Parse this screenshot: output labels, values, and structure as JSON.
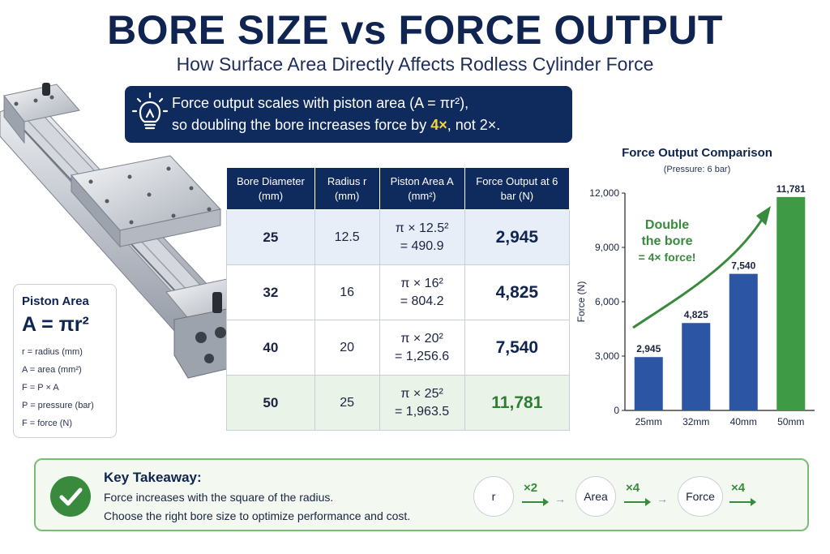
{
  "header": {
    "title": "BORE SIZE vs FORCE OUTPUT",
    "subtitle": "How Surface Area Directly Affects Rodless Cylinder Force"
  },
  "banner": {
    "line1": "Force output scales with piston area (A = πr²),",
    "line2_pre": "so doubling the bore increases force by ",
    "line2_hl": "4×",
    "line2_post": ", not 2×.",
    "icon": "lightbulb-icon"
  },
  "area_card": {
    "heading": "Piston Area",
    "formula": "A = πr²",
    "lines": [
      "r = radius (mm)",
      "A = area (mm²)",
      "F = P × A",
      "P = pressure (bar)",
      "F = force (N)"
    ]
  },
  "table": {
    "headers": [
      "Bore Diameter (mm)",
      "Radius r (mm)",
      "Piston Area A (mm²)",
      "Force Output at 6 bar (N)"
    ],
    "rows": [
      {
        "bore": "25",
        "radius": "12.5",
        "calc1": "π × 12.5²",
        "calc2": "= 490.9",
        "force": "2,945"
      },
      {
        "bore": "32",
        "radius": "16",
        "calc1": "π × 16²",
        "calc2": "= 804.2",
        "force": "4,825"
      },
      {
        "bore": "40",
        "radius": "20",
        "calc1": "π × 20²",
        "calc2": "= 1,256.6",
        "force": "7,540"
      },
      {
        "bore": "50",
        "radius": "25",
        "calc1": "π × 25²",
        "calc2": "= 1,963.5",
        "force": "11,781"
      }
    ]
  },
  "chart_data": {
    "type": "bar",
    "title": "Force Output Comparison",
    "subtitle": "(Pressure: 6 bar)",
    "ylabel": "Force (N)",
    "xlabel": "",
    "categories": [
      "25mm",
      "32mm",
      "40mm",
      "50mm"
    ],
    "values": [
      2945,
      4825,
      7540,
      11781
    ],
    "value_labels": [
      "2,945",
      "4,825",
      "7,540",
      "11,781"
    ],
    "ylim": [
      0,
      12000
    ],
    "yticks": [
      0,
      3000,
      6000,
      9000,
      12000
    ],
    "ytick_labels": [
      "0",
      "3,000",
      "6,000",
      "9,000",
      "12,000"
    ],
    "grid": false,
    "annotation": {
      "line1": "Double",
      "line2": "the bore",
      "line3": "= 4× force!"
    },
    "colors": {
      "bar": "#2c56a3",
      "highlight": "#3f9a46",
      "annotation": "#3a8a3e",
      "axis": "#222222"
    }
  },
  "takeaway": {
    "title": "Key Takeaway:",
    "line1": "Force increases with the square of the radius.",
    "line2": "Choose the right bore size to optimize performance and cost.",
    "flow": [
      {
        "label": "r",
        "mult": "×2"
      },
      {
        "label": "Area",
        "mult": "×4"
      },
      {
        "label": "Force",
        "mult": "×4"
      }
    ],
    "icon": "checkmark-icon"
  },
  "colors": {
    "navy": "#0f2a5c",
    "green": "#3a8a3e",
    "yellow": "#f5d33a"
  }
}
